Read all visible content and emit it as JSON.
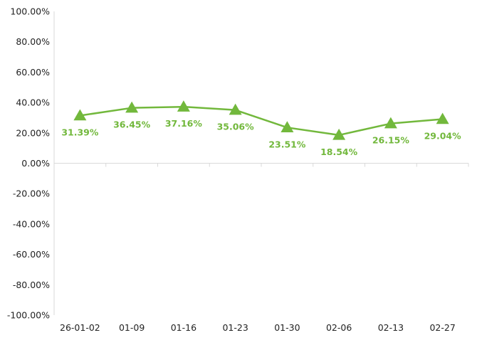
{
  "chart_data": {
    "type": "line",
    "categories": [
      "26-01-02",
      "01-09",
      "01-16",
      "01-23",
      "01-30",
      "02-06",
      "02-13",
      "02-27"
    ],
    "series": [
      {
        "values": [
          31.39,
          36.45,
          37.16,
          35.06,
          23.51,
          18.54,
          26.15,
          29.04
        ],
        "labels": [
          "31.39%",
          "36.45%",
          "37.16%",
          "35.06%",
          "23.51%",
          "18.54%",
          "26.15%",
          "29.04%"
        ],
        "color": "#72B83C",
        "marker": "triangle"
      }
    ],
    "yticks": [
      "100.00%",
      "80.00%",
      "60.00%",
      "40.00%",
      "20.00%",
      "0.00%",
      "-20.00%",
      "-40.00%",
      "-60.00%",
      "-80.00%",
      "-100.00%"
    ],
    "ylim": [
      -100,
      100
    ],
    "grid": false,
    "legend": "none",
    "title": "",
    "xlabel": "",
    "ylabel": ""
  }
}
